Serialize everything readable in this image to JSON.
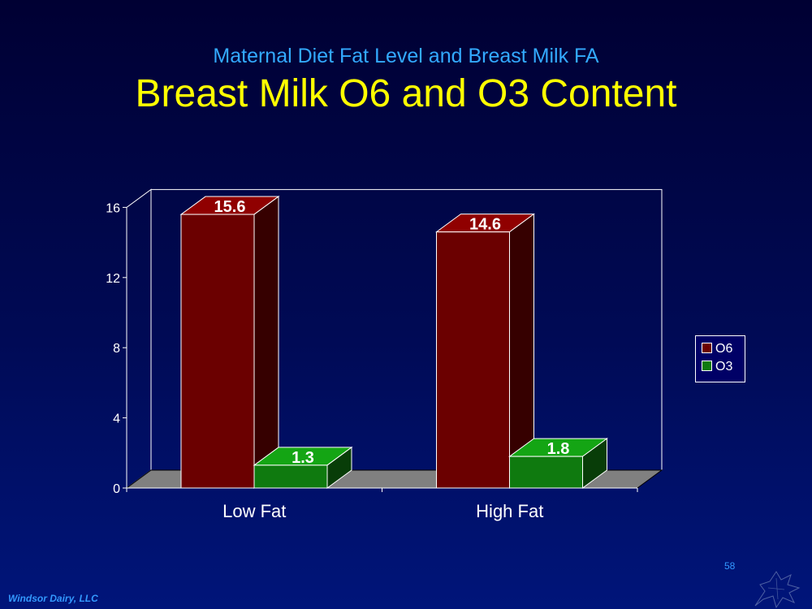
{
  "slide": {
    "subtitle": "Maternal Diet Fat Level and Breast Milk FA",
    "title": "Breast Milk O6 and O3 Content",
    "page_number": "58",
    "footer": "Windsor Dairy, LLC"
  },
  "chart_data": {
    "type": "bar",
    "title": "",
    "xlabel": "",
    "ylabel": "",
    "categories": [
      "Low Fat",
      "High Fat"
    ],
    "series": [
      {
        "name": "O6",
        "values": [
          15.6,
          14.6
        ],
        "color": "#6b0000"
      },
      {
        "name": "O3",
        "values": [
          1.3,
          1.8
        ],
        "color": "#0f7a0f"
      }
    ],
    "data_labels": [
      [
        "15.6",
        "14.6"
      ],
      [
        "1.3",
        "1.8"
      ]
    ],
    "ylim": [
      0,
      16
    ],
    "yticks": [
      0,
      4,
      8,
      12,
      16
    ],
    "grid": false,
    "style": "3d-clustered-column",
    "legend_position": "right"
  },
  "colors": {
    "background": "#000a55",
    "subtitle": "#33aaff",
    "title": "#ffff00",
    "floor": "#808080",
    "footer": "#3399ff"
  }
}
